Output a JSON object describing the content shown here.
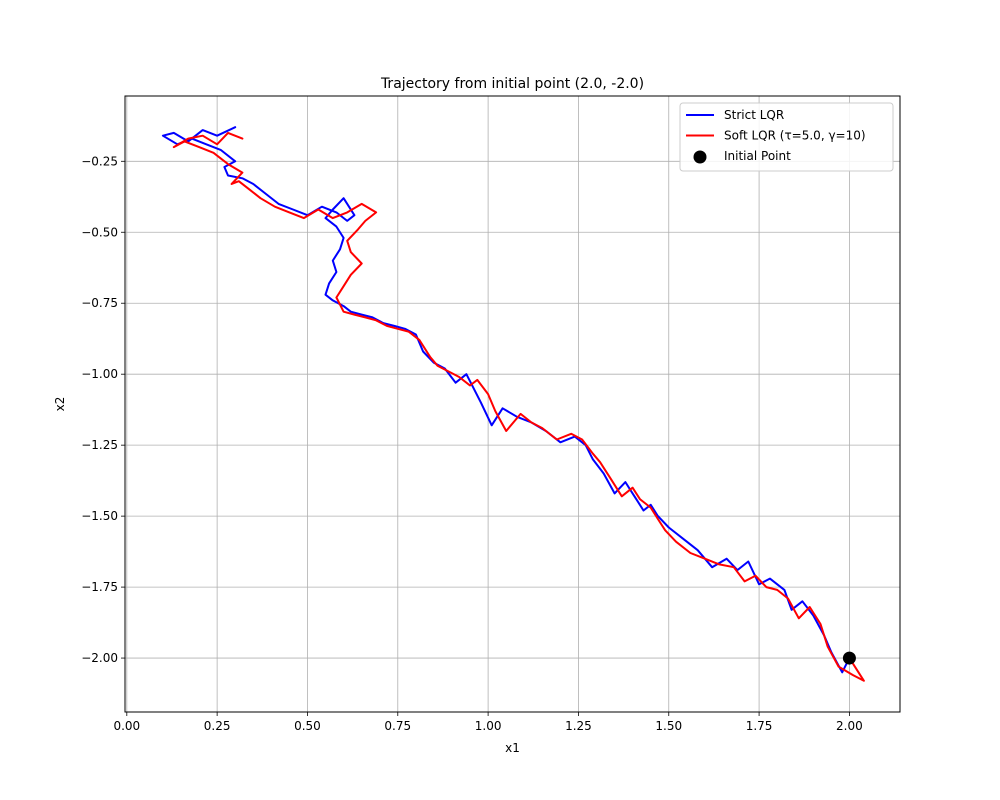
{
  "chart_data": {
    "type": "line",
    "title": "Trajectory from initial point (2.0, -2.0)",
    "xlabel": "x1",
    "ylabel": "x2",
    "xlim": [
      -0.005,
      2.14
    ],
    "ylim": [
      -2.19,
      -0.02
    ],
    "xticks": [
      0.0,
      0.25,
      0.5,
      0.75,
      1.0,
      1.25,
      1.5,
      1.75,
      2.0
    ],
    "xtick_labels": [
      "0.00",
      "0.25",
      "0.50",
      "0.75",
      "1.00",
      "1.25",
      "1.50",
      "1.75",
      "2.00"
    ],
    "yticks": [
      -2.0,
      -1.75,
      -1.5,
      -1.25,
      -1.0,
      -0.75,
      -0.5,
      -0.25
    ],
    "ytick_labels": [
      "−2.00",
      "−1.75",
      "−1.50",
      "−1.25",
      "−1.00",
      "−0.75",
      "−0.50",
      "−0.25"
    ],
    "grid": true,
    "legend_position": "top-right",
    "series": [
      {
        "name": "Strict LQR",
        "color": "#0000ff",
        "kind": "line",
        "x": [
          2.0,
          1.98,
          1.95,
          1.93,
          1.9,
          1.87,
          1.84,
          1.82,
          1.78,
          1.75,
          1.72,
          1.69,
          1.66,
          1.62,
          1.58,
          1.54,
          1.5,
          1.47,
          1.45,
          1.43,
          1.4,
          1.38,
          1.35,
          1.32,
          1.29,
          1.27,
          1.24,
          1.2,
          1.16,
          1.12,
          1.08,
          1.04,
          1.01,
          0.98,
          0.96,
          0.94,
          0.91,
          0.88,
          0.85,
          0.82,
          0.8,
          0.77,
          0.74,
          0.71,
          0.68,
          0.65,
          0.62,
          0.6,
          0.57,
          0.55,
          0.56,
          0.58,
          0.57,
          0.59,
          0.6,
          0.58,
          0.55,
          0.57,
          0.6,
          0.63,
          0.61,
          0.58,
          0.54,
          0.5,
          0.46,
          0.42,
          0.38,
          0.35,
          0.32,
          0.28,
          0.27,
          0.3,
          0.26,
          0.22,
          0.18,
          0.14,
          0.1,
          0.13,
          0.17,
          0.21,
          0.25,
          0.3
        ],
        "y": [
          -2.0,
          -2.05,
          -1.98,
          -1.92,
          -1.85,
          -1.8,
          -1.83,
          -1.76,
          -1.72,
          -1.74,
          -1.66,
          -1.69,
          -1.65,
          -1.68,
          -1.62,
          -1.58,
          -1.54,
          -1.5,
          -1.46,
          -1.48,
          -1.42,
          -1.38,
          -1.42,
          -1.35,
          -1.3,
          -1.25,
          -1.22,
          -1.24,
          -1.2,
          -1.17,
          -1.15,
          -1.12,
          -1.18,
          -1.1,
          -1.05,
          -1.0,
          -1.03,
          -0.98,
          -0.96,
          -0.92,
          -0.86,
          -0.84,
          -0.83,
          -0.82,
          -0.8,
          -0.79,
          -0.78,
          -0.76,
          -0.74,
          -0.72,
          -0.68,
          -0.64,
          -0.6,
          -0.56,
          -0.52,
          -0.48,
          -0.45,
          -0.42,
          -0.38,
          -0.44,
          -0.46,
          -0.43,
          -0.41,
          -0.44,
          -0.42,
          -0.4,
          -0.36,
          -0.33,
          -0.31,
          -0.3,
          -0.27,
          -0.25,
          -0.21,
          -0.19,
          -0.17,
          -0.19,
          -0.16,
          -0.15,
          -0.18,
          -0.14,
          -0.16,
          -0.13
        ]
      },
      {
        "name": "Soft LQR (τ=5.0, γ=10)",
        "color": "#ff0000",
        "kind": "line",
        "x": [
          2.0,
          2.04,
          2.01,
          1.97,
          1.94,
          1.92,
          1.89,
          1.86,
          1.83,
          1.8,
          1.77,
          1.74,
          1.71,
          1.68,
          1.64,
          1.6,
          1.56,
          1.52,
          1.49,
          1.47,
          1.45,
          1.42,
          1.4,
          1.37,
          1.34,
          1.31,
          1.29,
          1.26,
          1.23,
          1.19,
          1.15,
          1.12,
          1.09,
          1.05,
          1.02,
          1.0,
          0.97,
          0.95,
          0.92,
          0.89,
          0.86,
          0.84,
          0.81,
          0.78,
          0.75,
          0.72,
          0.69,
          0.66,
          0.63,
          0.6,
          0.58,
          0.6,
          0.62,
          0.65,
          0.62,
          0.61,
          0.64,
          0.66,
          0.69,
          0.65,
          0.61,
          0.57,
          0.53,
          0.49,
          0.45,
          0.41,
          0.37,
          0.34,
          0.31,
          0.29,
          0.32,
          0.28,
          0.24,
          0.2,
          0.16,
          0.13,
          0.17,
          0.21,
          0.25,
          0.28,
          0.32
        ],
        "y": [
          -2.0,
          -2.08,
          -2.06,
          -2.03,
          -1.96,
          -1.88,
          -1.82,
          -1.86,
          -1.79,
          -1.76,
          -1.75,
          -1.71,
          -1.73,
          -1.68,
          -1.67,
          -1.65,
          -1.63,
          -1.59,
          -1.55,
          -1.51,
          -1.47,
          -1.44,
          -1.4,
          -1.43,
          -1.37,
          -1.31,
          -1.28,
          -1.23,
          -1.21,
          -1.23,
          -1.19,
          -1.17,
          -1.14,
          -1.2,
          -1.13,
          -1.07,
          -1.02,
          -1.04,
          -1.01,
          -0.99,
          -0.97,
          -0.94,
          -0.88,
          -0.85,
          -0.84,
          -0.83,
          -0.81,
          -0.8,
          -0.79,
          -0.78,
          -0.73,
          -0.69,
          -0.65,
          -0.61,
          -0.57,
          -0.53,
          -0.49,
          -0.46,
          -0.43,
          -0.4,
          -0.43,
          -0.45,
          -0.42,
          -0.45,
          -0.43,
          -0.41,
          -0.38,
          -0.35,
          -0.32,
          -0.33,
          -0.29,
          -0.26,
          -0.22,
          -0.2,
          -0.18,
          -0.2,
          -0.17,
          -0.16,
          -0.19,
          -0.15,
          -0.17
        ]
      },
      {
        "name": "Initial Point",
        "color": "#000000",
        "kind": "point",
        "x": [
          2.0
        ],
        "y": [
          -2.0
        ]
      }
    ]
  }
}
